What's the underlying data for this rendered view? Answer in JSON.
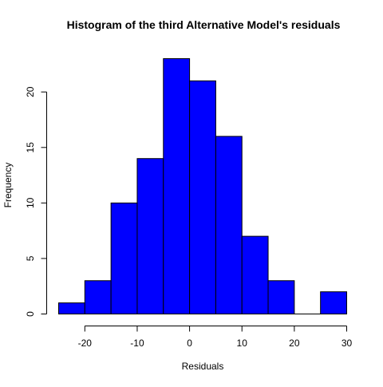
{
  "chart_data": {
    "type": "bar",
    "title": "Histogram of the third Alternative Model's residuals",
    "xlabel": "Residuals",
    "ylabel": "Frequency",
    "bins": [
      {
        "x0": -25,
        "x1": -20,
        "count": 1
      },
      {
        "x0": -20,
        "x1": -15,
        "count": 3
      },
      {
        "x0": -15,
        "x1": -10,
        "count": 10
      },
      {
        "x0": -10,
        "x1": -5,
        "count": 14
      },
      {
        "x0": -5,
        "x1": 0,
        "count": 23
      },
      {
        "x0": 0,
        "x1": 5,
        "count": 21
      },
      {
        "x0": 5,
        "x1": 10,
        "count": 16
      },
      {
        "x0": 10,
        "x1": 15,
        "count": 7
      },
      {
        "x0": 15,
        "x1": 20,
        "count": 3
      },
      {
        "x0": 20,
        "x1": 25,
        "count": 0
      },
      {
        "x0": 25,
        "x1": 30,
        "count": 2
      }
    ],
    "xlim": [
      -25,
      30
    ],
    "ylim": [
      0,
      23
    ],
    "x_ticks": [
      "-20",
      "-10",
      "0",
      "10",
      "20",
      "30"
    ],
    "y_ticks": [
      "0",
      "5",
      "10",
      "15",
      "20"
    ],
    "grid": false,
    "legend": "none",
    "bar_color": "#0000ff",
    "bar_border_color": "#000000"
  }
}
